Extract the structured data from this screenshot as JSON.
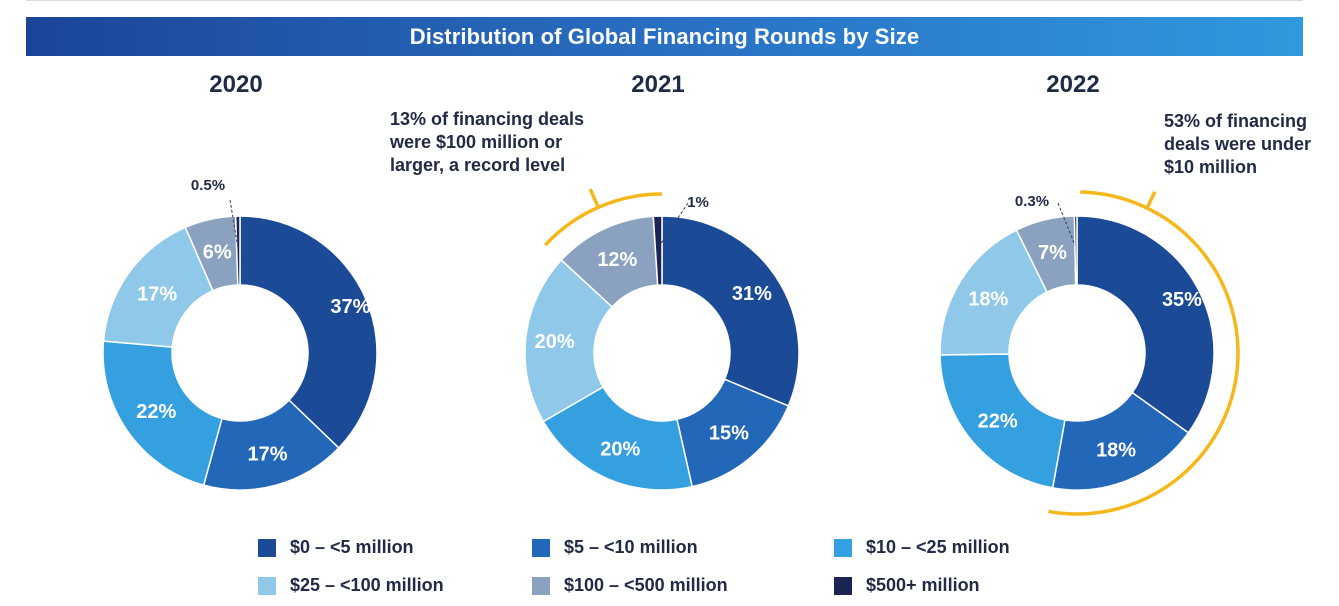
{
  "header": {
    "title": "Distribution of Global Financing Rounds by Size"
  },
  "colors": {
    "banner_start": "#1b4596",
    "banner_end": "#2f9ade",
    "bracket": "#f5b81c",
    "label_dark": "#222a45"
  },
  "legend": [
    {
      "label": "$0 – <5 million",
      "color": "#1b4a96"
    },
    {
      "label": "$5 – <10 million",
      "color": "#2367b9"
    },
    {
      "label": "$10 – <25 million",
      "color": "#35a0e0"
    },
    {
      "label": "$25 – <100 million",
      "color": "#90c8ea"
    },
    {
      "label": "$100 – <500 million",
      "color": "#8aa2bf"
    },
    {
      "label": "$500+ million",
      "color": "#1a2554"
    }
  ],
  "chart_data": [
    {
      "type": "pie",
      "title": "2020",
      "categories": [
        "$0 – <5 million",
        "$5 – <10 million",
        "$10 – <25 million",
        "$25 – <100 million",
        "$100 – <500 million",
        "$500+ million"
      ],
      "values": [
        37,
        17,
        22,
        17,
        6,
        0.5
      ],
      "labels": [
        "37%",
        "17%",
        "22%",
        "17%",
        "6%",
        "0.5%"
      ],
      "annotation": ""
    },
    {
      "type": "pie",
      "title": "2021",
      "categories": [
        "$0 – <5 million",
        "$5 – <10 million",
        "$10 – <25 million",
        "$25 – <100 million",
        "$100 – <500 million",
        "$500+ million"
      ],
      "values": [
        31,
        15,
        20,
        20,
        12,
        1
      ],
      "labels": [
        "31%",
        "15%",
        "20%",
        "20%",
        "12%",
        "1%"
      ],
      "annotation": "13% of financing deals were $100 million or larger, a record level"
    },
    {
      "type": "pie",
      "title": "2022",
      "categories": [
        "$0 – <5 million",
        "$5 – <10 million",
        "$10 – <25 million",
        "$25 – <100 million",
        "$100 – <500 million",
        "$500+ million"
      ],
      "values": [
        35,
        18,
        22,
        18,
        7,
        0.3
      ],
      "labels": [
        "35%",
        "18%",
        "22%",
        "18%",
        "7%",
        "0.3%"
      ],
      "annotation": "53% of financing deals were under $10 million"
    }
  ]
}
